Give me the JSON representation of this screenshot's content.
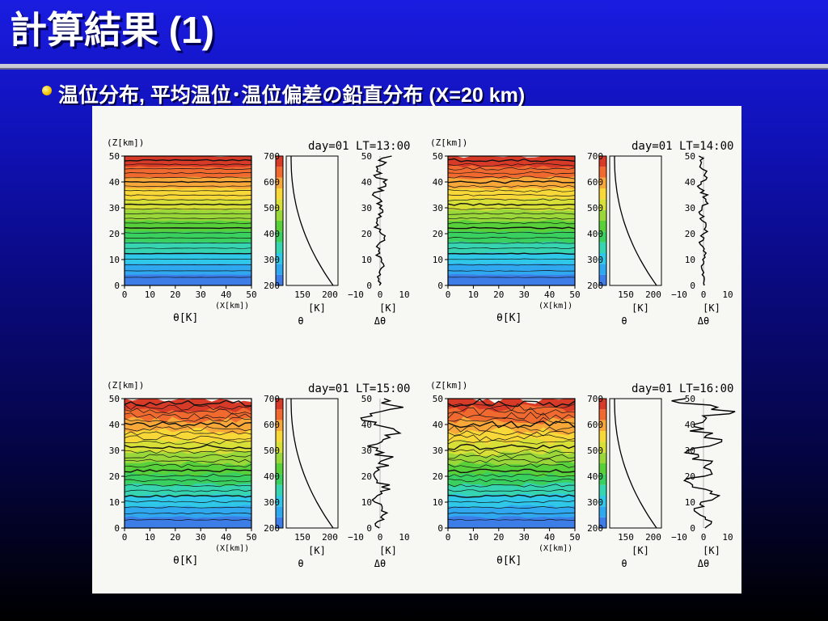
{
  "slide": {
    "title": "計算結果 (1)",
    "bullet": "温位分布, 平均温位･温位偏差の鉛直分布 (X=20 km)"
  },
  "figure": {
    "axis_units": {
      "z": "(Z[km])",
      "x": "(X[km])",
      "theta": "θ[K]",
      "kelvin": "[K]",
      "theta_symbol": "θ",
      "delta_theta": "Δθ"
    },
    "z_ticks": [
      "0",
      "10",
      "20",
      "30",
      "40",
      "50"
    ],
    "x_ticks": [
      "0",
      "10",
      "20",
      "30",
      "40",
      "50"
    ],
    "colorbar_ticks": [
      "200",
      "300",
      "400",
      "500",
      "600",
      "700"
    ],
    "mean_ticks": [
      "150",
      "200"
    ],
    "dev_ticks": [
      "−10",
      "0",
      "10"
    ],
    "colors": {
      "colorbar": [
        "#3c7de8",
        "#2fa8f0",
        "#30c8e8",
        "#36d4b0",
        "#3ad060",
        "#58d03a",
        "#9ad83a",
        "#d8e038",
        "#f8d838",
        "#f8a838",
        "#f06a30",
        "#d83a28"
      ]
    },
    "panels": [
      {
        "id": "p1",
        "header": "day=01  LT=13:00",
        "turbulence": 0.15,
        "deviation_amplitude": 4,
        "deviation_seed": 3
      },
      {
        "id": "p2",
        "header": "day=01  LT=14:00",
        "turbulence": 0.35,
        "deviation_amplitude": 3,
        "deviation_seed": 7
      },
      {
        "id": "p3",
        "header": "day=01  LT=15:00",
        "turbulence": 0.7,
        "deviation_amplitude": 9,
        "deviation_seed": 11
      },
      {
        "id": "p4",
        "header": "day=01  LT=16:00",
        "turbulence": 0.9,
        "deviation_amplitude": 12,
        "deviation_seed": 19
      }
    ]
  }
}
